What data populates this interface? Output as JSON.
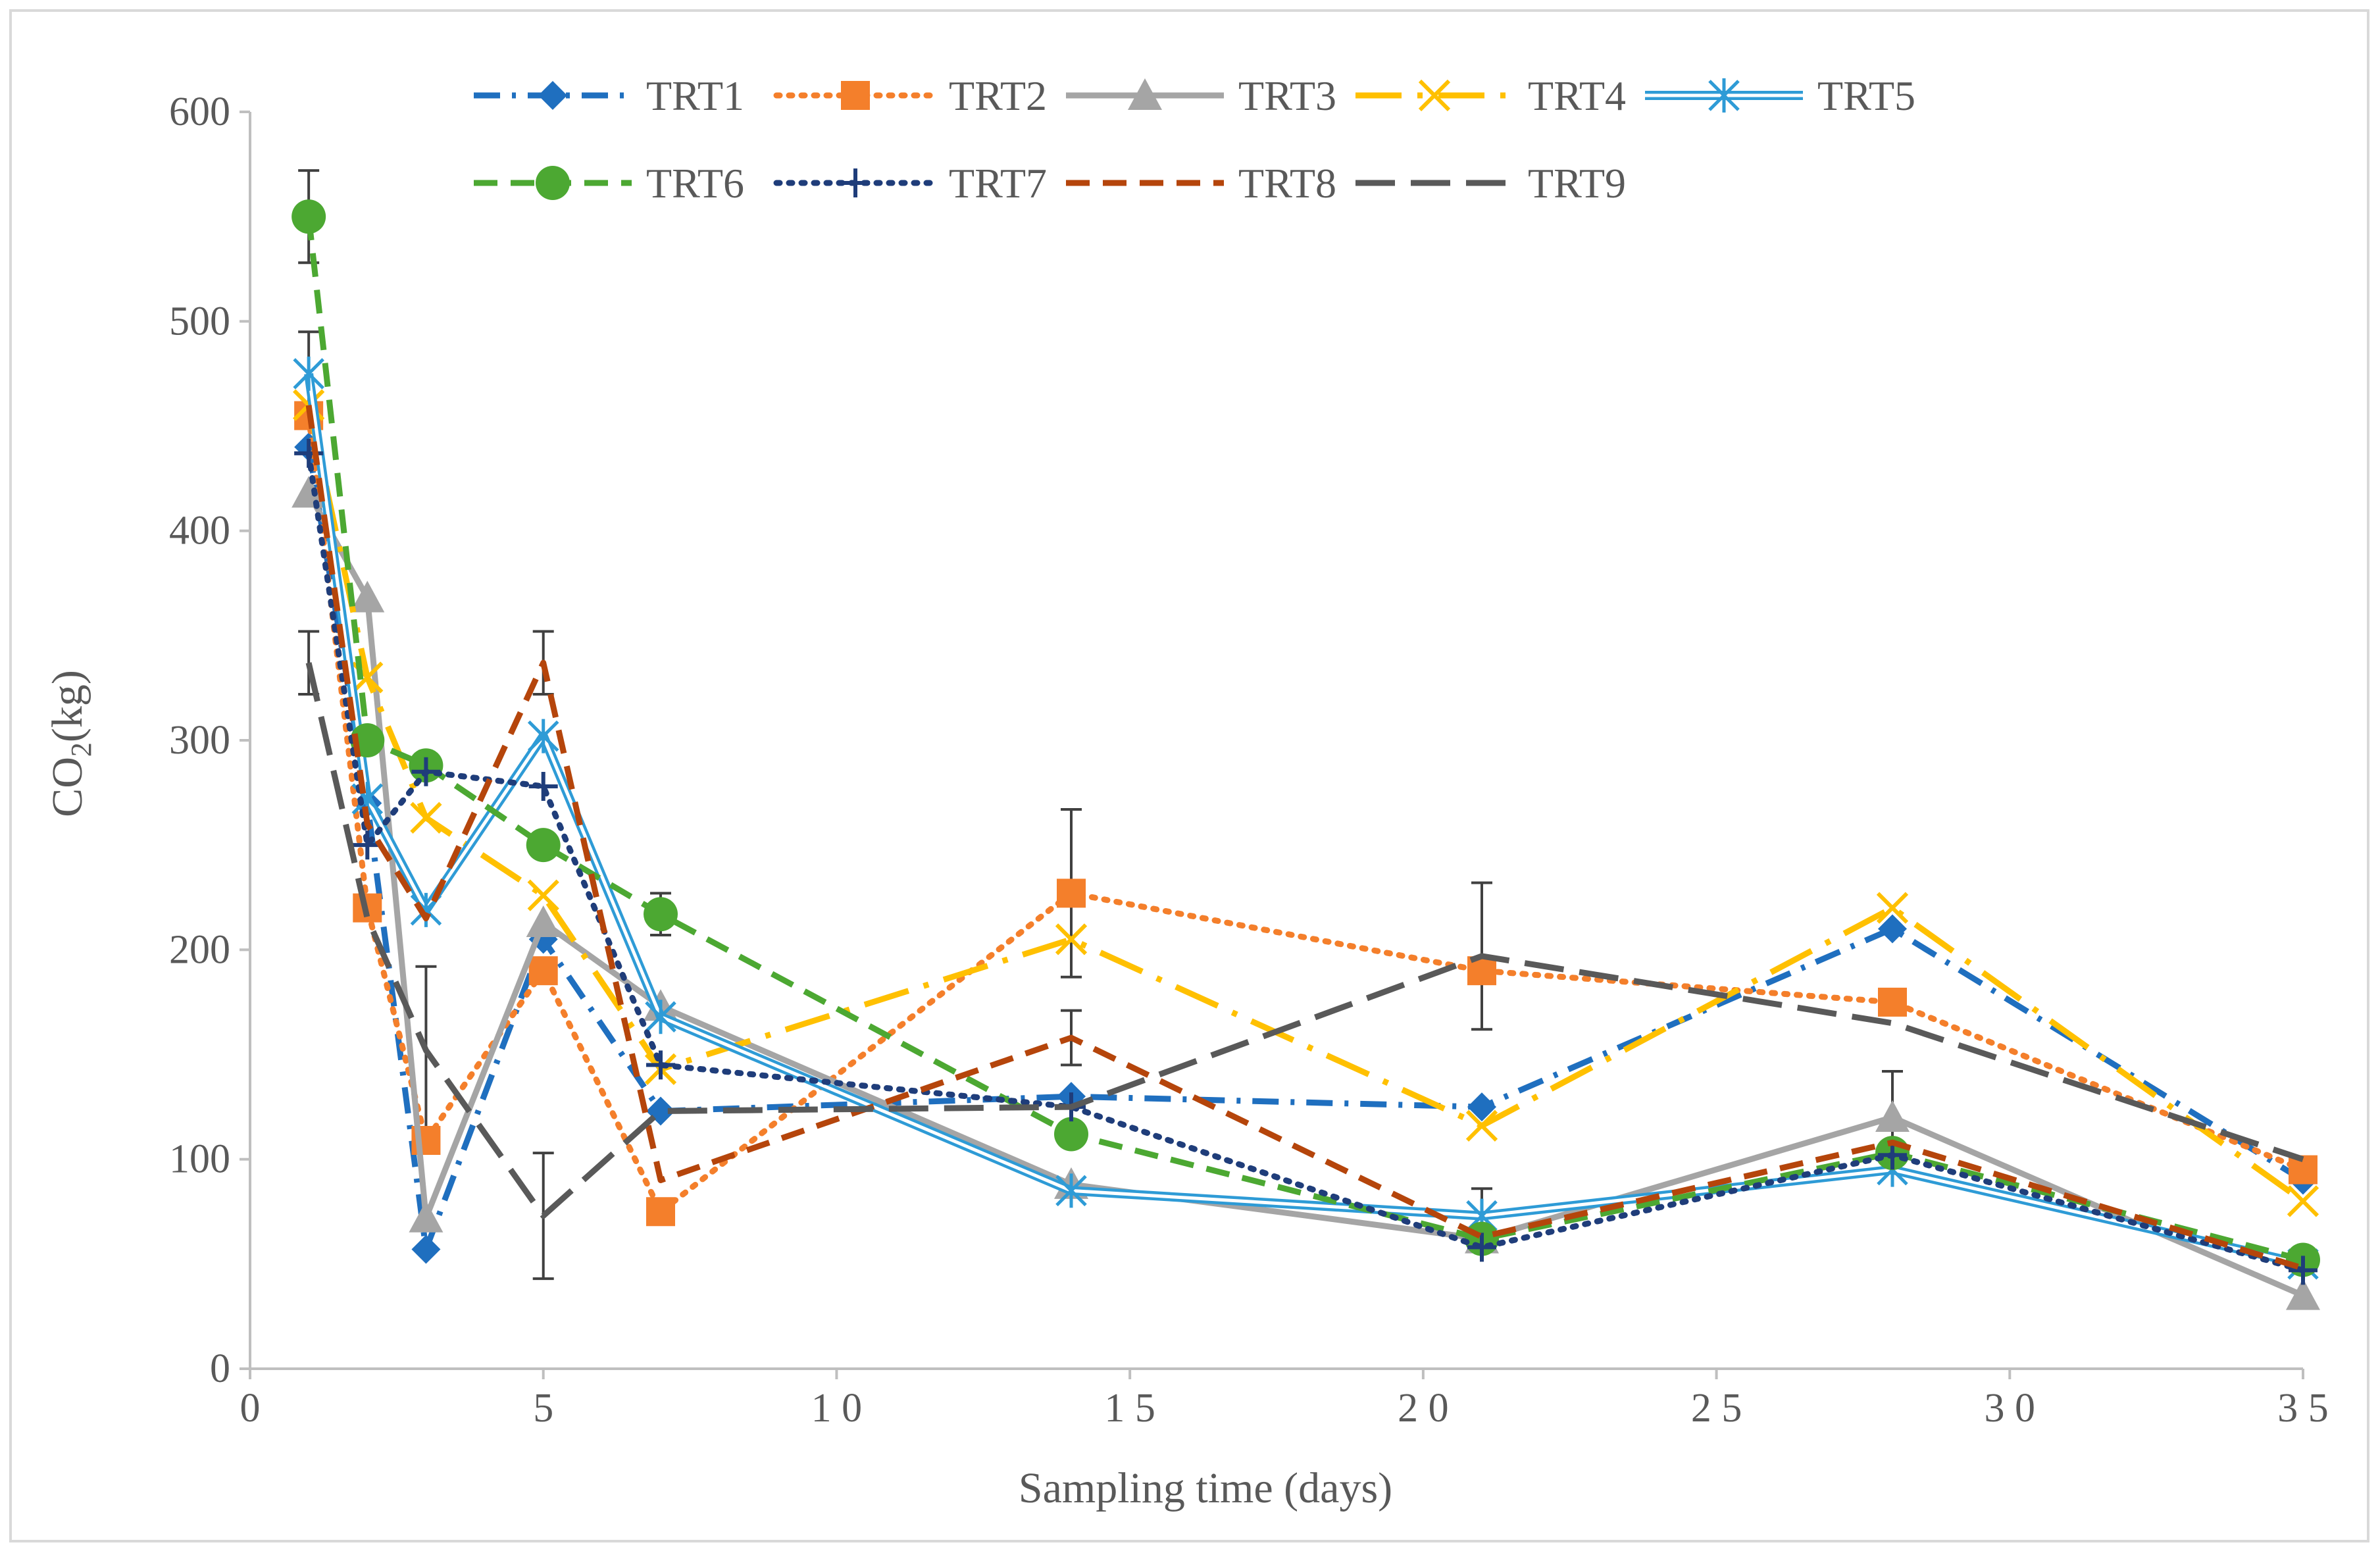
{
  "chart_data": {
    "type": "line",
    "title": "",
    "xlabel": "Sampling time (days)",
    "ylabel_main": "CO",
    "ylabel_sub": "2",
    "ylabel_rest": "(kg)",
    "xlim": [
      0,
      35
    ],
    "ylim": [
      0,
      600
    ],
    "x_ticks": [
      0,
      5,
      10,
      15,
      20,
      25,
      30,
      35
    ],
    "x_tick_labels": [
      "0",
      "5",
      "1 0",
      "1 5",
      "2 0",
      "2 5",
      "3 0",
      "3 5"
    ],
    "y_ticks": [
      0,
      100,
      200,
      300,
      400,
      500,
      600
    ],
    "y_tick_labels": [
      "0",
      "100",
      "200",
      "300",
      "400",
      "500",
      "600"
    ],
    "grid": false,
    "legend_position": "top",
    "x": [
      1,
      2,
      3,
      5,
      7,
      14,
      21,
      28,
      35
    ],
    "series": [
      {
        "name": "TRT1",
        "color": "#1f6fbf",
        "dash": "dashdot",
        "marker": "diamond",
        "values": [
          440,
          270,
          57,
          205,
          123,
          130,
          125,
          210,
          90
        ],
        "errors": [
          0,
          0,
          0,
          0,
          0,
          0,
          0,
          0,
          0
        ]
      },
      {
        "name": "TRT2",
        "color": "#f47f2b",
        "dash": "dotted",
        "marker": "square",
        "values": [
          455,
          220,
          109,
          190,
          75,
          227,
          190,
          175,
          95
        ],
        "errors": [
          0,
          0,
          0,
          0,
          0,
          40,
          0,
          0,
          0
        ]
      },
      {
        "name": "TRT3",
        "color": "#a5a5a5",
        "dash": "solid",
        "marker": "triangle",
        "values": [
          418,
          368,
          72,
          213,
          173,
          88,
          62,
          120,
          35
        ],
        "errors": [
          0,
          0,
          0,
          0,
          0,
          0,
          0,
          22,
          0
        ]
      },
      {
        "name": "TRT4",
        "color": "#ffc000",
        "dash": "longdashdot",
        "marker": "x",
        "values": [
          460,
          330,
          263,
          226,
          143,
          205,
          116,
          220,
          80
        ],
        "errors": [
          0,
          0,
          0,
          0,
          0,
          0,
          0,
          0,
          0
        ]
      },
      {
        "name": "TRT5",
        "color": "#2e9bd6",
        "dash": "double",
        "marker": "asterisk",
        "values": [
          475,
          272,
          219,
          302,
          168,
          85,
          73,
          95,
          50
        ],
        "errors": [
          20,
          0,
          0,
          0,
          0,
          0,
          13,
          0,
          0
        ]
      },
      {
        "name": "TRT6",
        "color": "#4ca832",
        "dash": "dashed",
        "marker": "circle",
        "values": [
          550,
          300,
          288,
          250,
          217,
          112,
          62,
          103,
          52
        ],
        "errors": [
          22,
          0,
          0,
          0,
          10,
          0,
          0,
          0,
          0
        ]
      },
      {
        "name": "TRT7",
        "color": "#1f3d7a",
        "dash": "dotted",
        "marker": "plus",
        "values": [
          437,
          250,
          285,
          278,
          145,
          125,
          58,
          102,
          47
        ],
        "errors": [
          0,
          0,
          0,
          0,
          0,
          0,
          0,
          0,
          0
        ]
      },
      {
        "name": "TRT8",
        "color": "#b5450b",
        "dash": "dashed",
        "marker": "none",
        "values": [
          460,
          260,
          215,
          337,
          90,
          158,
          63,
          108,
          48
        ],
        "errors": [
          0,
          0,
          0,
          15,
          0,
          13,
          0,
          0,
          0
        ]
      },
      {
        "name": "TRT9",
        "color": "#595959",
        "dash": "longdash",
        "marker": "none",
        "values": [
          337,
          215,
          152,
          73,
          123,
          125,
          197,
          165,
          100
        ],
        "errors": [
          15,
          0,
          40,
          30,
          0,
          0,
          35,
          0,
          0
        ]
      }
    ]
  }
}
